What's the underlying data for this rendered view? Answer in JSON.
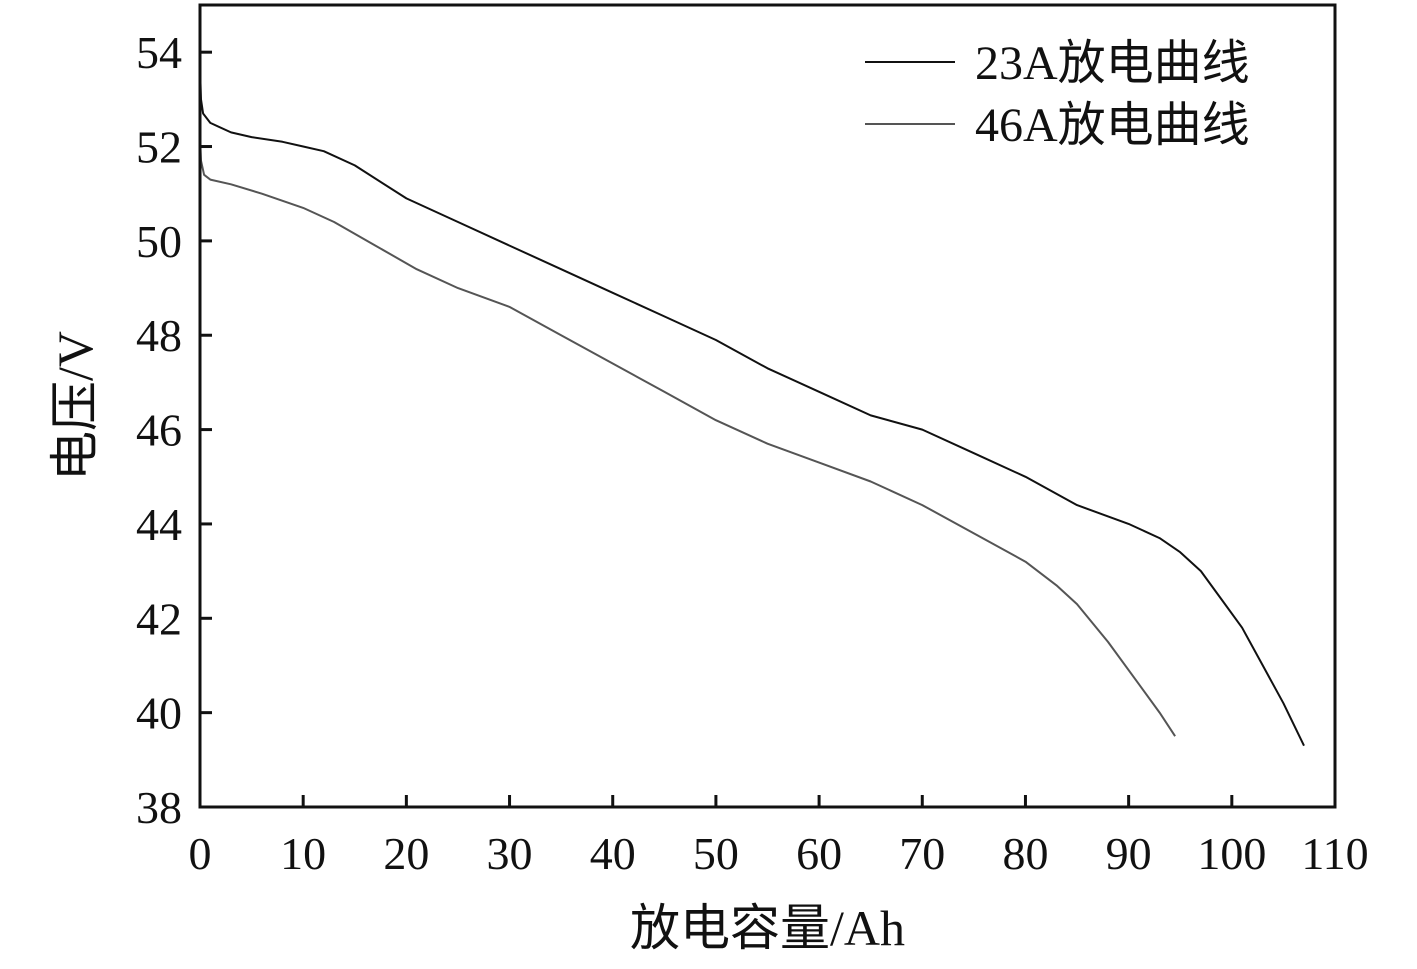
{
  "chart_data": {
    "type": "line",
    "xlabel": "放电容量/Ah",
    "ylabel": "电压/V",
    "xlim": [
      0,
      110
    ],
    "ylim": [
      38,
      55
    ],
    "xticks": [
      "0",
      "10",
      "20",
      "30",
      "40",
      "50",
      "60",
      "70",
      "80",
      "90",
      "100",
      "110"
    ],
    "yticks": [
      "38",
      "40",
      "42",
      "44",
      "46",
      "48",
      "50",
      "52",
      "54"
    ],
    "grid": false,
    "legend_position": "top-right",
    "series": [
      {
        "name": "23A放电曲线",
        "color": "#111111",
        "x": [
          0,
          0.1,
          0.3,
          1,
          3,
          5,
          8,
          10,
          12,
          15,
          20,
          25,
          30,
          35,
          40,
          45,
          50,
          55,
          60,
          65,
          70,
          75,
          80,
          85,
          90,
          93,
          95,
          97,
          99,
          101,
          103,
          105,
          107
        ],
        "y": [
          53.7,
          53.0,
          52.7,
          52.5,
          52.3,
          52.2,
          52.1,
          52.0,
          51.9,
          51.6,
          50.9,
          50.4,
          49.9,
          49.4,
          48.9,
          48.4,
          47.9,
          47.3,
          46.8,
          46.3,
          46.0,
          45.5,
          45.0,
          44.4,
          44.0,
          43.7,
          43.4,
          43.0,
          42.4,
          41.8,
          41.0,
          40.2,
          39.3
        ]
      },
      {
        "name": "46A放电曲线",
        "color": "#555555",
        "x": [
          0,
          0.1,
          0.4,
          1,
          3,
          6,
          10,
          13,
          17,
          21,
          25,
          30,
          35,
          40,
          45,
          50,
          55,
          60,
          65,
          70,
          75,
          80,
          83,
          85,
          88,
          91,
          93,
          94.5
        ],
        "y": [
          52.2,
          51.7,
          51.4,
          51.3,
          51.2,
          51.0,
          50.7,
          50.4,
          49.9,
          49.4,
          49.0,
          48.6,
          48.0,
          47.4,
          46.8,
          46.2,
          45.7,
          45.3,
          44.9,
          44.4,
          43.8,
          43.2,
          42.7,
          42.3,
          41.5,
          40.6,
          40.0,
          39.5
        ]
      }
    ]
  }
}
